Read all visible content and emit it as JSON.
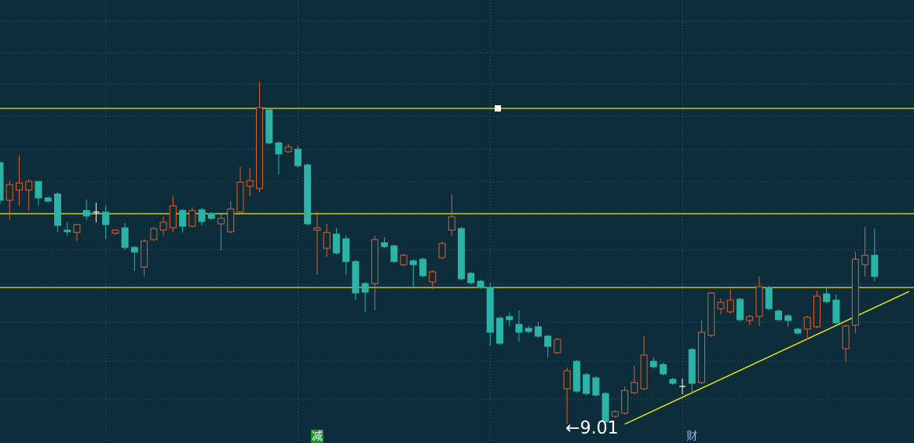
{
  "chart_data": {
    "type": "candlestick",
    "ylim": [
      8.77,
      14.41
    ],
    "yticks": [
      14.14,
      13.74,
      13.34,
      12.93,
      12.51,
      12.1,
      11.68,
      11.23,
      10.79,
      10.31,
      9.81,
      9.33
    ],
    "grid": true,
    "x_grid_index": [
      11,
      31,
      51,
      71
    ],
    "up_color": "#e0602a",
    "down_color": "#2ab3a6",
    "doji_color": "#ffffff",
    "open": [
      12.34,
      11.86,
      11.99,
      11.99,
      12.1,
      11.89,
      11.94,
      11.48,
      11.45,
      11.73,
      11.71,
      11.71,
      11.44,
      11.51,
      11.26,
      11.01,
      11.36,
      11.48,
      11.51,
      11.73,
      11.53,
      11.74,
      11.69,
      11.56,
      11.46,
      11.71,
      12.04,
      12.01,
      13.01,
      12.59,
      12.48,
      12.51,
      12.31,
      11.48,
      11.25,
      11.43,
      11.37,
      11.08,
      10.8,
      10.8,
      11.32,
      11.28,
      11.04,
      11.09,
      11.11,
      10.82,
      11.13,
      11.48,
      11.5,
      10.93,
      10.83,
      10.75,
      10.36,
      10.38,
      10.28,
      10.23,
      10.25,
      10.13,
      9.92,
      9.46,
      9.81,
      9.64,
      9.6,
      9.4,
      9.11,
      9.15,
      9.41,
      9.46,
      9.81,
      9.77,
      9.58,
      9.49,
      9.96,
      9.54,
      10.14,
      10.48,
      10.44,
      10.6,
      10.33,
      10.38,
      10.75,
      10.45,
      10.39,
      10.22,
      10.22,
      10.25,
      10.67,
      10.59,
      9.97,
      10.27,
      11.04,
      11.16
    ],
    "high": [
      12.34,
      12.11,
      12.43,
      12.13,
      12.1,
      11.91,
      11.96,
      11.58,
      11.56,
      11.87,
      11.83,
      11.79,
      11.49,
      11.57,
      11.28,
      11.36,
      11.52,
      11.65,
      11.92,
      11.75,
      11.77,
      11.76,
      11.71,
      11.69,
      11.85,
      12.29,
      12.27,
      13.37,
      13.03,
      12.61,
      12.58,
      12.55,
      12.33,
      11.71,
      11.56,
      11.51,
      11.41,
      11.1,
      10.82,
      11.41,
      11.39,
      11.3,
      11.18,
      11.11,
      11.13,
      10.97,
      11.33,
      11.94,
      11.52,
      10.95,
      10.85,
      10.81,
      10.38,
      10.43,
      10.46,
      10.26,
      10.31,
      10.15,
      10.11,
      9.73,
      9.83,
      9.66,
      9.62,
      9.42,
      9.19,
      9.49,
      9.75,
      10.13,
      9.86,
      9.79,
      9.6,
      9.59,
      9.98,
      10.33,
      10.69,
      10.61,
      10.73,
      10.62,
      10.4,
      10.89,
      10.77,
      10.47,
      10.41,
      10.24,
      10.39,
      10.71,
      10.76,
      10.66,
      10.28,
      11.21,
      11.52,
      11.5
    ],
    "low": [
      11.81,
      11.61,
      11.79,
      11.73,
      11.79,
      11.83,
      11.45,
      11.41,
      11.34,
      11.61,
      11.58,
      11.37,
      11.42,
      11.23,
      10.96,
      10.89,
      11.34,
      11.41,
      11.46,
      11.45,
      11.51,
      11.54,
      11.61,
      11.22,
      11.44,
      11.69,
      11.91,
      11.96,
      12.57,
      12.19,
      12.46,
      12.28,
      11.54,
      10.91,
      11.14,
      11.17,
      10.91,
      10.59,
      10.44,
      10.46,
      11.25,
      11.06,
      11.02,
      10.76,
      10.88,
      10.73,
      11.11,
      11.41,
      10.84,
      10.79,
      10.73,
      10.01,
      10.02,
      10.26,
      10.06,
      10.17,
      10.11,
      9.86,
      9.9,
      9.01,
      9.41,
      9.38,
      9.36,
      9.03,
      9.09,
      9.13,
      9.39,
      9.44,
      9.72,
      9.63,
      9.51,
      9.39,
      9.41,
      9.52,
      10.12,
      10.41,
      10.42,
      10.32,
      10.27,
      10.26,
      10.46,
      10.32,
      10.25,
      10.15,
      10.09,
      10.23,
      10.55,
      10.28,
      9.81,
      10.17,
      10.89,
      10.83
    ],
    "close": [
      11.86,
      12.06,
      12.08,
      12.1,
      11.89,
      11.85,
      11.54,
      11.46,
      11.55,
      11.66,
      11.71,
      11.55,
      11.48,
      11.26,
      11.2,
      11.34,
      11.5,
      11.58,
      11.79,
      11.53,
      11.73,
      11.59,
      11.63,
      11.63,
      11.75,
      12.09,
      12.11,
      13.04,
      12.59,
      12.45,
      12.54,
      12.3,
      11.56,
      11.51,
      11.45,
      11.19,
      11.08,
      10.68,
      10.69,
      11.36,
      11.27,
      11.08,
      11.16,
      11.04,
      10.9,
      10.95,
      11.31,
      11.65,
      10.86,
      10.81,
      10.75,
      10.18,
      10.04,
      10.34,
      10.18,
      10.19,
      10.13,
      10.0,
      10.09,
      9.69,
      9.43,
      9.4,
      9.38,
      9.04,
      9.17,
      9.44,
      9.54,
      9.89,
      9.74,
      9.65,
      9.53,
      9.49,
      9.53,
      10.18,
      10.68,
      10.56,
      10.59,
      10.34,
      10.38,
      10.76,
      10.48,
      10.34,
      10.33,
      10.17,
      10.37,
      10.64,
      10.57,
      10.3,
      10.26,
      11.11,
      11.16,
      10.89
    ],
    "hlines": {
      "color": "#e6e600",
      "values": [
        13.03,
        11.69,
        10.75
      ]
    },
    "trendline": {
      "color": "#e6e600",
      "start": [
        65,
        9.01
      ],
      "end": [
        94.6,
        10.7
      ]
    },
    "low_label": {
      "index": 59,
      "value": 9.01,
      "text": "←9.01"
    },
    "markers": [
      {
        "index": 33,
        "text": "减",
        "color": "#ffffff",
        "background": "#1f8f2f"
      },
      {
        "index": 72,
        "text": "财",
        "color": "#8fb8ff"
      }
    ]
  }
}
